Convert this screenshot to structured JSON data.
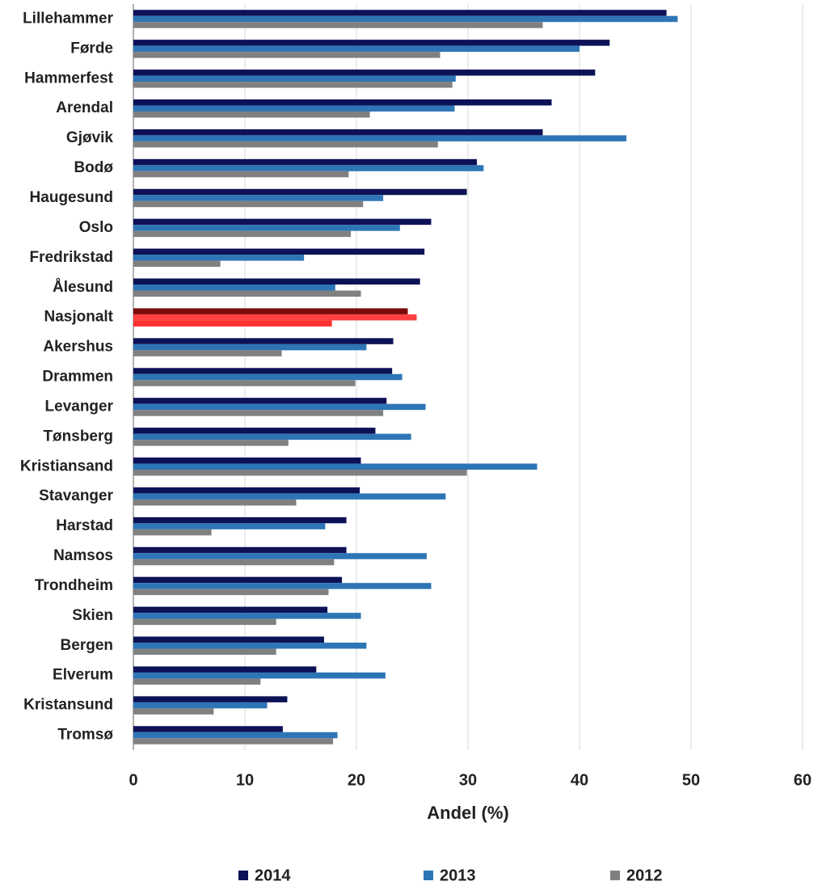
{
  "chart_data": {
    "type": "bar",
    "orientation": "horizontal",
    "x_label": "Andel (%)",
    "categories": [
      "Lillehammer",
      "Førde",
      "Hammerfest",
      "Arendal",
      "Gjøvik",
      "Bodø",
      "Haugesund",
      "Oslo",
      "Fredrikstad",
      "Ålesund",
      "Nasjonalt",
      "Akershus",
      "Drammen",
      "Levanger",
      "Tønsberg",
      "Kristiansand",
      "Stavanger",
      "Harstad",
      "Namsos",
      "Trondheim",
      "Skien",
      "Bergen",
      "Elverum",
      "Kristansund",
      "Tromsø"
    ],
    "series": [
      {
        "name": "2014",
        "color": "#0d1257",
        "highlight_color": "#7b0a0a",
        "values": [
          47.8,
          42.7,
          41.4,
          37.5,
          36.7,
          30.8,
          29.9,
          26.7,
          26.1,
          25.7,
          24.6,
          23.3,
          23.2,
          22.7,
          21.7,
          20.4,
          20.3,
          19.1,
          19.1,
          18.7,
          17.4,
          17.1,
          16.4,
          13.8,
          13.4
        ]
      },
      {
        "name": "2013",
        "color": "#2e75b6",
        "highlight_color": "#ff4040",
        "values": [
          48.8,
          40.0,
          28.9,
          28.8,
          44.2,
          31.4,
          22.4,
          23.9,
          15.3,
          18.1,
          25.4,
          20.9,
          24.1,
          26.2,
          24.9,
          36.2,
          28.0,
          17.2,
          26.3,
          26.7,
          20.4,
          20.9,
          22.6,
          12.0,
          18.3
        ]
      },
      {
        "name": "2012",
        "color": "#808080",
        "highlight_color": "#ff3030",
        "values": [
          36.7,
          27.5,
          28.6,
          21.2,
          27.3,
          19.3,
          20.6,
          19.5,
          7.8,
          20.4,
          17.8,
          13.3,
          19.9,
          22.4,
          13.9,
          29.9,
          14.6,
          7.0,
          18.0,
          17.5,
          12.8,
          12.8,
          11.4,
          7.2,
          17.9
        ]
      }
    ],
    "highlight_category": 10,
    "xlim": [
      0,
      60
    ],
    "xticks": [
      0,
      10,
      20,
      30,
      40,
      50,
      60
    ],
    "grid": true,
    "legend": "bottom"
  }
}
